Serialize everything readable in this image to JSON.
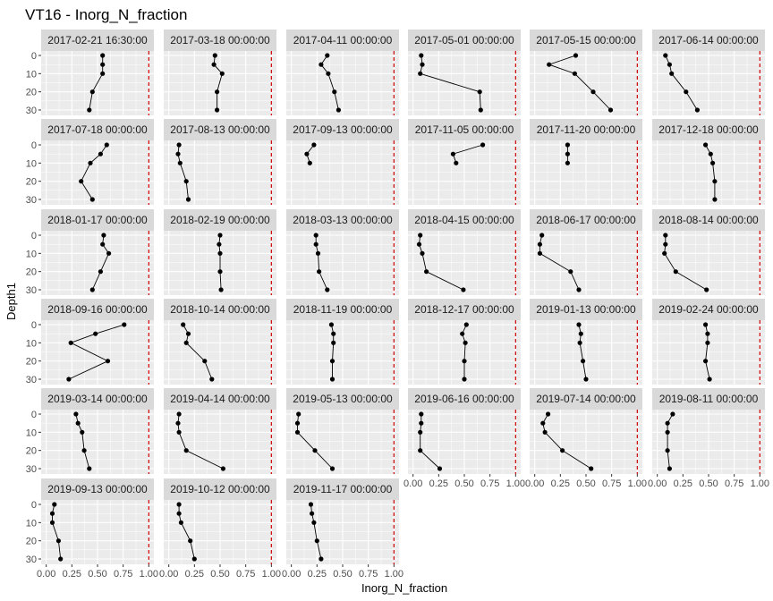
{
  "chart_data": {
    "type": "line",
    "title": "VT16  -  Inorg_N_fraction",
    "xlabel": "Inorg_N_fraction",
    "ylabel": "Depth1",
    "xlim": [
      0,
      1
    ],
    "ylim": [
      0,
      30
    ],
    "x_ticks": [
      "0.00",
      "0.25",
      "0.50",
      "0.75",
      "1.00"
    ],
    "y_ticks": [
      "0",
      "10",
      "20",
      "30"
    ],
    "reference_line": {
      "x": 1.0,
      "style": "dashed",
      "color": "#cc0000"
    },
    "depths": [
      0,
      5,
      10,
      20,
      30
    ],
    "colors": {
      "strip_bg": "#d9d9d9",
      "panel_bg": "#ebebeb",
      "grid": "#ffffff",
      "series": "#000000",
      "ref": "#cc0000"
    },
    "panels": [
      {
        "label": "2017-02-21 16:30:00",
        "x": [
          0.55,
          0.55,
          0.55,
          0.45,
          0.42
        ]
      },
      {
        "label": "2017-03-18 00:00:00",
        "x": [
          0.45,
          0.44,
          0.52,
          0.47,
          0.47
        ]
      },
      {
        "label": "2017-04-11 00:00:00",
        "x": [
          0.35,
          0.29,
          0.36,
          0.42,
          0.46
        ]
      },
      {
        "label": "2017-05-01 00:00:00",
        "x": [
          0.08,
          0.09,
          0.07,
          0.65,
          0.66
        ]
      },
      {
        "label": "2017-05-15 00:00:00",
        "x": [
          0.4,
          0.14,
          0.39,
          0.57,
          0.74
        ]
      },
      {
        "label": "2017-06-14 00:00:00",
        "x": [
          0.08,
          0.12,
          0.14,
          0.28,
          0.39
        ]
      },
      {
        "label": "2017-07-18 00:00:00",
        "x": [
          0.59,
          0.53,
          0.43,
          0.34,
          0.45
        ]
      },
      {
        "label": "2017-08-13 00:00:00",
        "x": [
          0.1,
          0.09,
          0.11,
          0.17,
          0.19
        ]
      },
      {
        "label": "2017-09-13 00:00:00",
        "x": [
          0.22,
          0.15,
          0.18,
          null,
          null
        ]
      },
      {
        "label": "2017-11-05 00:00:00",
        "x": [
          0.68,
          0.39,
          0.42,
          null,
          null
        ]
      },
      {
        "label": "2017-11-20 00:00:00",
        "x": [
          0.32,
          0.32,
          0.32,
          null,
          null
        ]
      },
      {
        "label": "2017-12-18 00:00:00",
        "x": [
          0.47,
          0.52,
          0.54,
          0.56,
          0.56
        ]
      },
      {
        "label": "2018-01-17 00:00:00",
        "x": [
          0.56,
          0.55,
          0.61,
          0.53,
          0.45
        ]
      },
      {
        "label": "2018-02-19 00:00:00",
        "x": [
          0.5,
          0.49,
          0.5,
          0.5,
          0.51
        ]
      },
      {
        "label": "2018-03-13 00:00:00",
        "x": [
          0.24,
          0.24,
          0.26,
          0.27,
          0.35
        ]
      },
      {
        "label": "2018-04-15 00:00:00",
        "x": [
          0.07,
          0.06,
          0.09,
          0.13,
          0.49
        ]
      },
      {
        "label": "2018-06-17 00:00:00",
        "x": [
          0.07,
          0.05,
          0.05,
          0.35,
          0.43
        ]
      },
      {
        "label": "2018-08-14 00:00:00",
        "x": [
          0.08,
          0.08,
          0.07,
          0.18,
          0.48
        ]
      },
      {
        "label": "2018-09-16 00:00:00",
        "x": [
          0.76,
          0.48,
          0.24,
          0.6,
          0.22
        ]
      },
      {
        "label": "2018-10-14 00:00:00",
        "x": [
          0.14,
          0.19,
          0.17,
          0.35,
          0.42
        ]
      },
      {
        "label": "2018-11-19 00:00:00",
        "x": [
          0.39,
          0.41,
          0.41,
          0.4,
          0.4
        ]
      },
      {
        "label": "2018-12-17 00:00:00",
        "x": [
          0.52,
          0.48,
          0.51,
          0.5,
          0.5
        ]
      },
      {
        "label": "2019-01-13 00:00:00",
        "x": [
          0.43,
          0.45,
          0.44,
          0.47,
          0.5
        ]
      },
      {
        "label": "2019-02-24 00:00:00",
        "x": [
          0.47,
          0.49,
          0.49,
          0.47,
          0.51
        ]
      },
      {
        "label": "2019-03-14 00:00:00",
        "x": [
          0.29,
          0.31,
          0.35,
          0.37,
          0.42
        ]
      },
      {
        "label": "2019-04-14 00:00:00",
        "x": [
          0.1,
          0.09,
          0.1,
          0.17,
          0.53
        ]
      },
      {
        "label": "2019-05-13 00:00:00",
        "x": [
          0.07,
          0.06,
          0.06,
          0.23,
          0.4
        ]
      },
      {
        "label": "2019-06-16 00:00:00",
        "x": [
          0.08,
          0.08,
          0.07,
          0.07,
          0.26
        ]
      },
      {
        "label": "2019-07-14 00:00:00",
        "x": [
          0.13,
          0.08,
          0.1,
          0.27,
          0.55
        ]
      },
      {
        "label": "2019-08-11 00:00:00",
        "x": [
          0.15,
          0.1,
          0.1,
          0.1,
          0.12
        ]
      },
      {
        "label": "2019-09-13 00:00:00",
        "x": [
          0.08,
          0.06,
          0.06,
          0.12,
          0.14
        ]
      },
      {
        "label": "2019-10-12 00:00:00",
        "x": [
          0.1,
          0.1,
          0.12,
          0.21,
          0.25
        ]
      },
      {
        "label": "2019-11-17 00:00:00",
        "x": [
          0.19,
          0.2,
          0.22,
          0.25,
          0.29
        ]
      }
    ]
  }
}
